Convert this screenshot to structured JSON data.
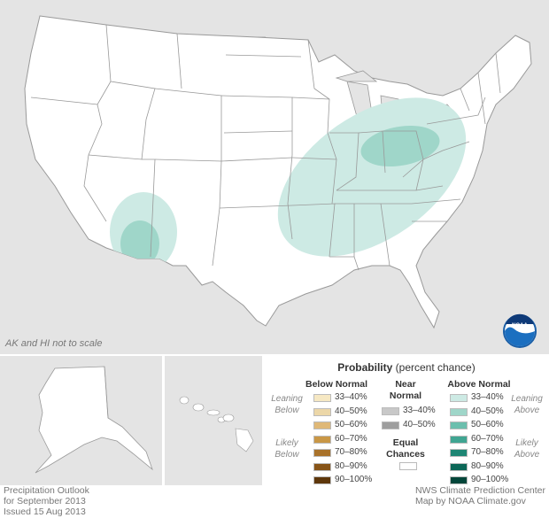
{
  "map": {
    "note": "AK and HI not to scale",
    "logo_text": "NOAA",
    "colors": {
      "land": "#ffffff",
      "background": "#e4e4e4",
      "border": "#888888",
      "above_33_40": "#cdeae4",
      "above_40_50": "#9fd6c9"
    },
    "regions": [
      {
        "category": "Above Normal",
        "probability": "33–40%",
        "area": "Ohio Valley, Great Lakes and Southeast"
      },
      {
        "category": "Above Normal",
        "probability": "40–50%",
        "area": "Ohio and Indiana"
      },
      {
        "category": "Above Normal",
        "probability": "33–40%",
        "area": "Arizona and New Mexico"
      },
      {
        "category": "Above Normal",
        "probability": "40–50%",
        "area": "Southern Arizona"
      }
    ]
  },
  "legend": {
    "title_bold": "Probability",
    "title_rest": "(percent chance)",
    "below": {
      "header": "Below Normal",
      "items": [
        {
          "label": "33–40%",
          "color": "#f6e8c3"
        },
        {
          "label": "40–50%",
          "color": "#ecd7a8"
        },
        {
          "label": "50–60%",
          "color": "#dfb877"
        },
        {
          "label": "60–70%",
          "color": "#c99746"
        },
        {
          "label": "70–80%",
          "color": "#a9722a"
        },
        {
          "label": "80–90%",
          "color": "#875418"
        },
        {
          "label": "90–100%",
          "color": "#5e370b"
        }
      ],
      "leaning": [
        "Leaning",
        "Below"
      ],
      "likely": [
        "Likely",
        "Below"
      ]
    },
    "near": {
      "header": [
        "Near",
        "Normal"
      ],
      "items": [
        {
          "label": "33–40%",
          "color": "#c8c8c8"
        },
        {
          "label": "40–50%",
          "color": "#9e9e9e"
        }
      ]
    },
    "equal": {
      "header": [
        "Equal",
        "Chances"
      ],
      "color": "#ffffff"
    },
    "above": {
      "header": "Above Normal",
      "items": [
        {
          "label": "33–40%",
          "color": "#cdeae4"
        },
        {
          "label": "40–50%",
          "color": "#9fd6c9"
        },
        {
          "label": "50–60%",
          "color": "#6cbfae"
        },
        {
          "label": "60–70%",
          "color": "#40a592"
        },
        {
          "label": "70–80%",
          "color": "#1e8674"
        },
        {
          "label": "80–90%",
          "color": "#0c6757"
        },
        {
          "label": "90–100%",
          "color": "#03463a"
        }
      ],
      "leaning": [
        "Leaning",
        "Above"
      ],
      "likely": [
        "Likely",
        "Above"
      ]
    }
  },
  "footer": {
    "left": [
      "Precipitation Outlook",
      "for September 2013",
      "Issued 15 Aug 2013"
    ],
    "right": [
      "NWS Climate Prediction Center",
      "Map by NOAA Climate.gov"
    ]
  }
}
